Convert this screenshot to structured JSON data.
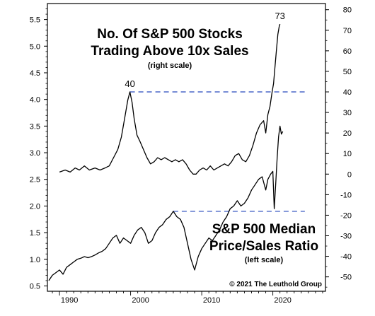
{
  "chart_data": {
    "type": "line",
    "x_axis": {
      "ticks": [
        1990,
        2000,
        2010,
        2020
      ],
      "tick_labels": [
        "1990",
        "2000",
        "2010",
        "2020"
      ],
      "range": [
        1988.3,
        2027.4
      ]
    },
    "left_axis": {
      "range": [
        0.4,
        5.8
      ],
      "ticks": [
        0.5,
        1.0,
        1.5,
        2.0,
        2.5,
        3.0,
        3.5,
        4.0,
        4.5,
        5.0,
        5.5
      ],
      "tick_labels": [
        "0.5",
        "1.0",
        "1.5",
        "2.0",
        "2.5",
        "3.0",
        "3.5",
        "4.0",
        "4.5",
        "5.0",
        "5.5"
      ]
    },
    "right_axis": {
      "range": [
        -57,
        83
      ],
      "ticks": [
        -50,
        -40,
        -30,
        -20,
        -10,
        0,
        10,
        20,
        30,
        40,
        50,
        60,
        70,
        80
      ],
      "tick_labels": [
        "-50",
        "-40",
        "-30",
        "-20",
        "-10",
        "0",
        "10",
        "20",
        "30",
        "40",
        "50",
        "60",
        "70",
        "80"
      ]
    },
    "series": [
      {
        "name": "No. Of S&P 500 Stocks Trading Above 10x Sales",
        "axis": "right",
        "color": "#000000",
        "points": [
          [
            1990.0,
            1
          ],
          [
            1990.8,
            2
          ],
          [
            1991.5,
            1
          ],
          [
            1992.2,
            3
          ],
          [
            1992.8,
            2
          ],
          [
            1993.5,
            4
          ],
          [
            1994.2,
            2
          ],
          [
            1995.0,
            3
          ],
          [
            1995.7,
            2
          ],
          [
            1996.4,
            3
          ],
          [
            1997.0,
            4
          ],
          [
            1997.6,
            8
          ],
          [
            1998.2,
            12
          ],
          [
            1998.7,
            18
          ],
          [
            1999.2,
            28
          ],
          [
            1999.6,
            36
          ],
          [
            1999.9,
            40
          ],
          [
            2000.2,
            35
          ],
          [
            2000.5,
            27
          ],
          [
            2000.9,
            19
          ],
          [
            2001.3,
            16
          ],
          [
            2001.8,
            12
          ],
          [
            2002.3,
            8
          ],
          [
            2002.8,
            5
          ],
          [
            2003.3,
            6
          ],
          [
            2003.8,
            8
          ],
          [
            2004.3,
            7
          ],
          [
            2004.8,
            8
          ],
          [
            2005.3,
            7
          ],
          [
            2005.8,
            6
          ],
          [
            2006.3,
            7
          ],
          [
            2006.8,
            6
          ],
          [
            2007.3,
            7
          ],
          [
            2007.8,
            5
          ],
          [
            2008.3,
            2
          ],
          [
            2008.8,
            0
          ],
          [
            2009.2,
            0
          ],
          [
            2009.7,
            2
          ],
          [
            2010.2,
            3
          ],
          [
            2010.7,
            2
          ],
          [
            2011.2,
            4
          ],
          [
            2011.7,
            2
          ],
          [
            2012.2,
            3
          ],
          [
            2012.7,
            4
          ],
          [
            2013.2,
            5
          ],
          [
            2013.7,
            4
          ],
          [
            2014.2,
            6
          ],
          [
            2014.7,
            9
          ],
          [
            2015.2,
            10
          ],
          [
            2015.7,
            7
          ],
          [
            2016.2,
            6
          ],
          [
            2016.7,
            9
          ],
          [
            2017.2,
            14
          ],
          [
            2017.7,
            20
          ],
          [
            2018.2,
            24
          ],
          [
            2018.7,
            26
          ],
          [
            2019.0,
            20
          ],
          [
            2019.3,
            29
          ],
          [
            2019.6,
            33
          ],
          [
            2019.9,
            40
          ],
          [
            2020.1,
            44
          ],
          [
            2020.3,
            52
          ],
          [
            2020.5,
            60
          ],
          [
            2020.7,
            68
          ],
          [
            2020.9,
            72
          ],
          [
            2021.0,
            73
          ]
        ],
        "peak_labels": [
          {
            "year": 1999.9,
            "value": 40,
            "label": "40"
          },
          {
            "year": 2021.0,
            "value": 73,
            "label": "73"
          }
        ]
      },
      {
        "name": "S&P 500 Median Price/Sales Ratio",
        "axis": "left",
        "color": "#000000",
        "points": [
          [
            1988.5,
            0.6
          ],
          [
            1989.0,
            0.7
          ],
          [
            1989.5,
            0.75
          ],
          [
            1990.0,
            0.8
          ],
          [
            1990.5,
            0.72
          ],
          [
            1991.0,
            0.85
          ],
          [
            1991.5,
            0.9
          ],
          [
            1992.0,
            0.95
          ],
          [
            1992.5,
            1.0
          ],
          [
            1993.0,
            1.02
          ],
          [
            1993.5,
            1.05
          ],
          [
            1994.0,
            1.03
          ],
          [
            1994.5,
            1.05
          ],
          [
            1995.0,
            1.08
          ],
          [
            1995.5,
            1.12
          ],
          [
            1996.0,
            1.15
          ],
          [
            1996.5,
            1.2
          ],
          [
            1997.0,
            1.3
          ],
          [
            1997.5,
            1.4
          ],
          [
            1998.0,
            1.45
          ],
          [
            1998.5,
            1.3
          ],
          [
            1999.0,
            1.4
          ],
          [
            1999.5,
            1.35
          ],
          [
            2000.0,
            1.3
          ],
          [
            2000.5,
            1.45
          ],
          [
            2001.0,
            1.55
          ],
          [
            2001.5,
            1.6
          ],
          [
            2002.0,
            1.5
          ],
          [
            2002.5,
            1.3
          ],
          [
            2003.0,
            1.35
          ],
          [
            2003.5,
            1.5
          ],
          [
            2004.0,
            1.6
          ],
          [
            2004.5,
            1.65
          ],
          [
            2005.0,
            1.75
          ],
          [
            2005.5,
            1.8
          ],
          [
            2006.0,
            1.9
          ],
          [
            2006.5,
            1.8
          ],
          [
            2007.0,
            1.75
          ],
          [
            2007.5,
            1.6
          ],
          [
            2008.0,
            1.3
          ],
          [
            2008.5,
            1.0
          ],
          [
            2009.0,
            0.8
          ],
          [
            2009.5,
            1.05
          ],
          [
            2010.0,
            1.2
          ],
          [
            2010.5,
            1.3
          ],
          [
            2011.0,
            1.4
          ],
          [
            2011.5,
            1.35
          ],
          [
            2012.0,
            1.45
          ],
          [
            2012.5,
            1.55
          ],
          [
            2013.0,
            1.7
          ],
          [
            2013.5,
            1.8
          ],
          [
            2014.0,
            1.95
          ],
          [
            2014.5,
            2.0
          ],
          [
            2015.0,
            2.1
          ],
          [
            2015.5,
            2.0
          ],
          [
            2016.0,
            2.05
          ],
          [
            2016.5,
            2.15
          ],
          [
            2017.0,
            2.3
          ],
          [
            2017.5,
            2.4
          ],
          [
            2018.0,
            2.5
          ],
          [
            2018.5,
            2.55
          ],
          [
            2019.0,
            2.3
          ],
          [
            2019.3,
            2.5
          ],
          [
            2019.7,
            2.6
          ],
          [
            2020.0,
            2.65
          ],
          [
            2020.2,
            1.95
          ],
          [
            2020.4,
            2.4
          ],
          [
            2020.6,
            2.9
          ],
          [
            2020.8,
            3.3
          ],
          [
            2021.0,
            3.5
          ],
          [
            2021.2,
            3.35
          ],
          [
            2021.4,
            3.4
          ]
        ]
      }
    ],
    "reference_lines": [
      {
        "axis": "right",
        "value": 40,
        "x_range": [
          1999.9,
          2024.5
        ],
        "style": "dashed",
        "color": "#4a67c7"
      },
      {
        "axis": "left",
        "value": 1.9,
        "x_range": [
          2006.0,
          2024.5
        ],
        "style": "dashed",
        "color": "#4a67c7"
      }
    ],
    "annotations": {
      "top_title_line1": "No. Of S&P 500 Stocks",
      "top_title_line2": "Trading Above 10x Sales",
      "top_subtitle": "(right scale)",
      "bottom_title_line1": "S&P 500 Median",
      "bottom_title_line2": "Price/Sales Ratio",
      "bottom_subtitle": "(left scale)",
      "credit": "© 2021  The Leuthold Group"
    }
  }
}
